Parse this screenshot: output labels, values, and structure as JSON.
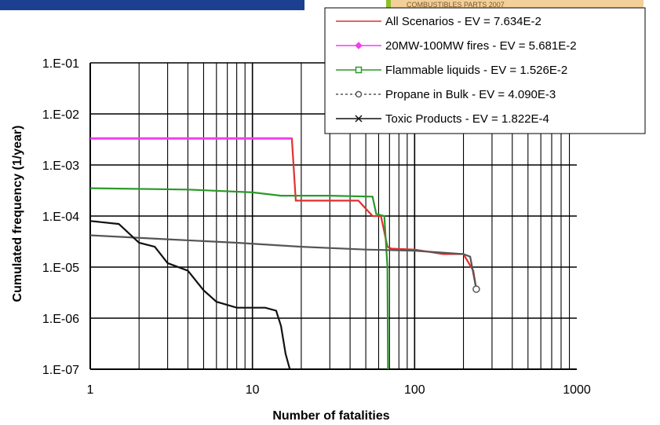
{
  "header": {
    "banner_text": "COMBUSTIBLES PARTS 2007"
  },
  "chart_data": {
    "type": "line",
    "title": "",
    "xlabel": "Number of fatalities",
    "ylabel": "Cumulated frequency (1/year)",
    "x_scale": "log",
    "y_scale": "log",
    "xlim": [
      1,
      1000
    ],
    "ylim": [
      1e-07,
      0.1
    ],
    "x_ticks": [
      1,
      10,
      100,
      1000
    ],
    "x_tick_labels": [
      "1",
      "10",
      "100",
      "1000"
    ],
    "y_ticks": [
      0.1,
      0.01,
      0.001,
      0.0001,
      1e-05,
      1e-06,
      1e-07
    ],
    "y_tick_labels": [
      "1.E-01",
      "1.E-02",
      "1.E-03",
      "1.E-04",
      "1.E-05",
      "1.E-06",
      "1.E-07"
    ],
    "grid": true,
    "legend_position": "top-right",
    "series": [
      {
        "name": "All Scenarios - EV = 7.634E-2",
        "color": "#e03030",
        "marker": "none",
        "points": [
          [
            1,
            0.0033
          ],
          [
            17.5,
            0.0033
          ],
          [
            18.5,
            0.0002
          ],
          [
            45,
            0.0002
          ],
          [
            55,
            0.0001
          ],
          [
            62,
            0.0001
          ],
          [
            68,
            2.5e-05
          ],
          [
            72,
            2.3e-05
          ],
          [
            100,
            2.2e-05
          ],
          [
            150,
            1.8e-05
          ],
          [
            200,
            1.8e-05
          ],
          [
            230,
            8.5e-06
          ],
          [
            240,
            3.7e-06
          ]
        ]
      },
      {
        "name": "20MW-100MW fires - EV = 5.681E-2",
        "color": "#ee40ee",
        "marker": "diamond",
        "points": [
          [
            1,
            0.0033
          ],
          [
            5,
            0.0033
          ],
          [
            10,
            0.0033
          ],
          [
            17.5,
            0.0033
          ]
        ]
      },
      {
        "name": "Flammable liquids - EV = 1.526E-2",
        "color": "#2a9a2a",
        "marker": "square",
        "points": [
          [
            1,
            0.00035
          ],
          [
            4,
            0.00033
          ],
          [
            10,
            0.00029
          ],
          [
            15,
            0.00025
          ],
          [
            30,
            0.00025
          ],
          [
            55,
            0.00024
          ],
          [
            58,
            0.00011
          ],
          [
            65,
            0.0001
          ],
          [
            68,
            1e-05
          ],
          [
            68.5,
            1e-07
          ]
        ]
      },
      {
        "name": "Propane in Bulk - EV = 4.090E-3",
        "color": "#555555",
        "marker": "circle",
        "points": [
          [
            1,
            4.2e-05
          ],
          [
            3,
            3.5e-05
          ],
          [
            8,
            3e-05
          ],
          [
            20,
            2.5e-05
          ],
          [
            50,
            2.2e-05
          ],
          [
            100,
            2.1e-05
          ],
          [
            200,
            1.8e-05
          ],
          [
            220,
            1.6e-05
          ],
          [
            240,
            3.7e-06
          ]
        ]
      },
      {
        "name": "Toxic Products - EV = 1.822E-4",
        "color": "#111111",
        "marker": "star",
        "points": [
          [
            1,
            8e-05
          ],
          [
            1.5,
            7e-05
          ],
          [
            2,
            3e-05
          ],
          [
            2.5,
            2.5e-05
          ],
          [
            3,
            1.2e-05
          ],
          [
            4,
            8.5e-06
          ],
          [
            5,
            3.5e-06
          ],
          [
            6,
            2.1e-06
          ],
          [
            8,
            1.6e-06
          ],
          [
            12,
            1.6e-06
          ],
          [
            14,
            1.4e-06
          ],
          [
            15,
            7e-07
          ],
          [
            16,
            2e-07
          ],
          [
            17,
            1e-07
          ]
        ]
      }
    ]
  }
}
